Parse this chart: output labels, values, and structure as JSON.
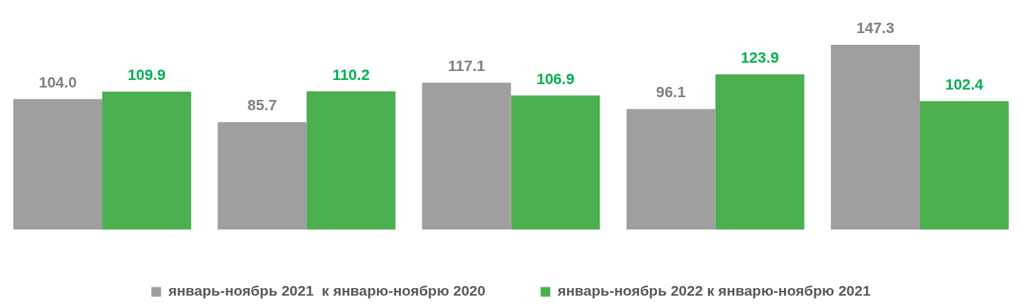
{
  "chart_data": {
    "type": "bar",
    "categories": [
      null,
      null,
      null,
      null,
      null
    ],
    "series": [
      {
        "name": "январь-ноябрь 2021  к январю-ноябрю 2020",
        "color": "#a09e9e",
        "values": [
          104.0,
          85.7,
          117.1,
          96.1,
          147.3
        ],
        "value_labels": [
          "104.0",
          "85.7",
          "117.1",
          "96.1",
          "147.3"
        ]
      },
      {
        "name": "январь-ноябрь 2022 к январю-ноябрю 2021",
        "color": "#4caf50",
        "values": [
          109.9,
          110.2,
          106.9,
          123.9,
          102.4
        ],
        "value_labels": [
          "109.9",
          "110.2",
          "106.9",
          "123.9",
          "102.4"
        ]
      }
    ],
    "legend": "bottom",
    "grid": false,
    "tick_labels": false
  }
}
